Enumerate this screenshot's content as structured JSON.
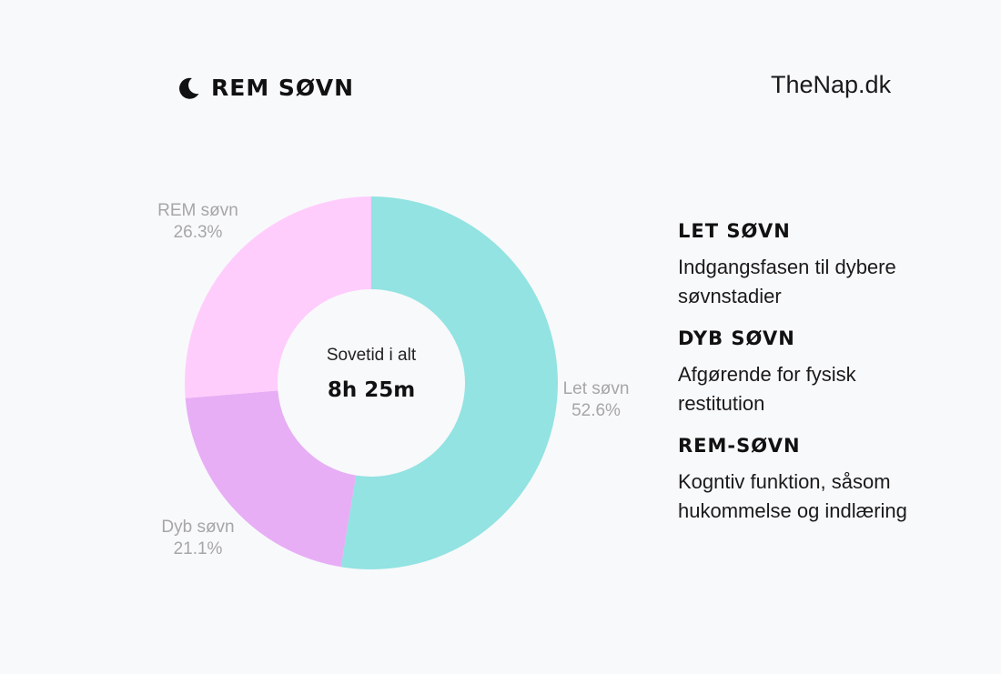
{
  "header": {
    "title": "REM SØVN",
    "icon": "moon-icon",
    "brand": "TheNap.dk"
  },
  "chart": {
    "center_caption": "Sovetid i alt",
    "center_value": "8h 25m",
    "slices": [
      {
        "label": "Let søvn",
        "percent_text": "52.6%",
        "color": "#92e3e2"
      },
      {
        "label": "Dyb søvn",
        "percent_text": "21.1%",
        "color": "#e7aef5"
      },
      {
        "label": "REM søvn",
        "percent_text": "26.3%",
        "color": "#ffcdfc"
      }
    ]
  },
  "legend": [
    {
      "heading": "LET SØVN",
      "desc_line1": "Indgangsfasen til dybere",
      "desc_line2": "søvnstadier"
    },
    {
      "heading": "DYB SØVN",
      "desc_line1": "Afgørende for fysisk",
      "desc_line2": "restitution"
    },
    {
      "heading": "REM-SØVN",
      "desc_line1": "Kogntiv funktion, såsom",
      "desc_line2": "hukommelse og indlæring"
    }
  ],
  "chart_data": {
    "type": "pie",
    "subtype": "donut",
    "title": "REM SØVN",
    "categories": [
      "Let søvn",
      "Dyb søvn",
      "REM søvn"
    ],
    "values": [
      52.6,
      21.1,
      26.3
    ],
    "unit": "%",
    "colors": [
      "#92e3e2",
      "#e7aef5",
      "#ffcdfc"
    ],
    "start_angle": "12 o'clock, clockwise",
    "center_annotation": {
      "caption": "Sovetid i alt",
      "value": "8h 25m"
    },
    "legend_position": "right (descriptive text)"
  }
}
